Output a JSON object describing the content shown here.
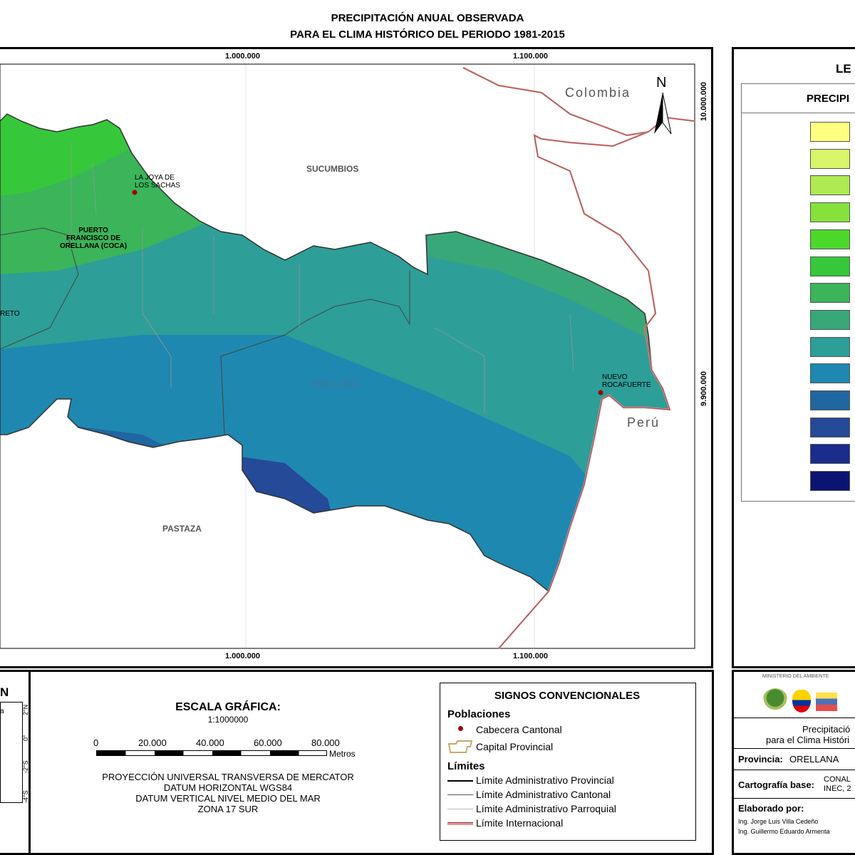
{
  "title": {
    "line1": "PRECIPITACIÓN ANUAL OBSERVADA",
    "line2": "PARA EL CLIMA HISTÓRICO DEL PERIODO 1981-2015"
  },
  "map": {
    "x_ticks_top": [
      "1.000.000",
      "1.100.000"
    ],
    "x_ticks_bottom": [
      "1.000.000",
      "1.100.000"
    ],
    "y_ticks": [
      "10.000.000",
      "9.900.000"
    ],
    "north_label": "N",
    "countries": {
      "colombia": "Colombia",
      "peru": "Perú"
    },
    "provinces": {
      "sucumbios": "SUCUMBIOS",
      "orellana": "ORELLANA",
      "pastaza": "PASTAZA"
    },
    "towns": {
      "joya_line1": "LA JOYA DE",
      "joya_line2": "LOS SACHAS",
      "coca_line1": "PUERTO",
      "coca_line2": "FRANCISCO DE",
      "coca_line3": "ORELLANA (COCA)",
      "rocafuerte_line1": "NUEVO",
      "rocafuerte_line2": "ROCAFUERTE",
      "loreto": "RETO"
    }
  },
  "legend": {
    "heading": "LE",
    "subheading": "PRECIPI",
    "colors": [
      "#ffff80",
      "#d9f56a",
      "#aeea50",
      "#86e23a",
      "#4cd82a",
      "#36c83a",
      "#3bb45a",
      "#38a878",
      "#2e9e98",
      "#1f88b0",
      "#2066a0",
      "#244a98",
      "#1a2c8c",
      "#0c1472"
    ]
  },
  "inset": {
    "label_n": "N",
    "lat_labels": [
      "2°N",
      "0°",
      "-2°S",
      "-4°S"
    ],
    "text_a": "a"
  },
  "scale": {
    "title": "ESCALA GRÁFICA:",
    "ratio": "1:1000000",
    "ticks": [
      "0",
      "20.000",
      "40.000",
      "60.000",
      "80.000"
    ],
    "units": "Metros",
    "projection": [
      "PROYECCIÓN UNIVERSAL TRANSVERSA DE MERCATOR",
      "DATUM HORIZONTAL WGS84",
      "DATUM VERTICAL NIVEL MEDIO DEL MAR",
      "ZONA 17 SUR"
    ]
  },
  "signs": {
    "title": "SIGNOS CONVENCIONALES",
    "poblaciones": "Poblaciones",
    "cabecera": "Cabecera Cantonal",
    "capital": "Capital Provincial",
    "limites": "Límites",
    "provincial": "Límite Administrativo Provincial",
    "cantonal": "Límite Administrativo Cantonal",
    "parroquial": "Límite Administrativo Parroquial",
    "internacional": "Límite Internacional"
  },
  "info": {
    "ministry": "MINISTERIO DEL AMBIENTE",
    "desc_line1": "Precipitació",
    "desc_line2": "para el Clima Históri",
    "provincia_label": "Provincia:",
    "provincia_value": "ORELLANA",
    "cartografia_label": "Cartografía base:",
    "cartografia_line1": "CONAL",
    "cartografia_line2": "INEC, 2",
    "elaborado_label": "Elaborado por:",
    "author1": "Ing. Jorge Luis Villa Cedeño",
    "author2": "Ing. Guillermo Eduardo Armenta"
  }
}
